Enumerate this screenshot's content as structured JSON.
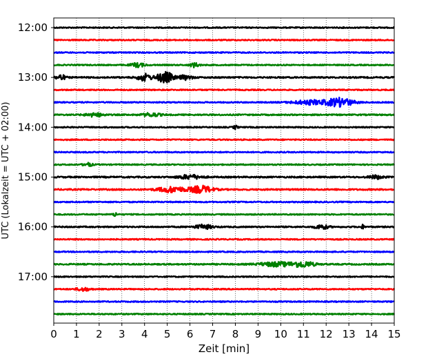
{
  "chart_data": {
    "type": "line",
    "title": "",
    "xlabel": "Zeit  [min]",
    "ylabel": "UTC (Lokalzeit = UTC + 02:00)",
    "xlim": [
      0,
      15
    ],
    "x_ticks": [
      0,
      1,
      2,
      3,
      4,
      5,
      6,
      7,
      8,
      9,
      10,
      11,
      12,
      13,
      14,
      15
    ],
    "x_tick_labels": [
      "0",
      "1",
      "2",
      "3",
      "4",
      "5",
      "6",
      "7",
      "8",
      "9",
      "10",
      "11",
      "12",
      "13",
      "14",
      "15"
    ],
    "grid": "vertical dotted",
    "trace_colors": [
      "#000000",
      "#ff0000",
      "#0000ff",
      "#008000"
    ],
    "y_tick_labels": [
      "12:00",
      "13:00",
      "14:00",
      "15:00",
      "16:00",
      "17:00"
    ],
    "traces": [
      {
        "start": "12:00",
        "color": "#000000",
        "noise": 0.8,
        "bursts": []
      },
      {
        "start": "12:15",
        "color": "#ff0000",
        "noise": 0.8,
        "bursts": []
      },
      {
        "start": "12:30",
        "color": "#0000ff",
        "noise": 0.8,
        "bursts": []
      },
      {
        "start": "12:45",
        "color": "#008000",
        "noise": 0.8,
        "bursts": [
          {
            "t": 3.7,
            "amp": 3,
            "width": 0.3
          },
          {
            "t": 6.2,
            "amp": 3,
            "width": 0.2
          }
        ]
      },
      {
        "start": "13:00",
        "color": "#000000",
        "noise": 1.0,
        "bursts": [
          {
            "t": 0.3,
            "amp": 4,
            "width": 0.2
          },
          {
            "t": 4.0,
            "amp": 5,
            "width": 0.3
          },
          {
            "t": 4.9,
            "amp": 8,
            "width": 0.35
          },
          {
            "t": 5.8,
            "amp": 3,
            "width": 0.3
          }
        ]
      },
      {
        "start": "13:15",
        "color": "#ff0000",
        "noise": 0.8,
        "bursts": []
      },
      {
        "start": "13:30",
        "color": "#0000ff",
        "noise": 0.8,
        "bursts": [
          {
            "t": 11.3,
            "amp": 3,
            "width": 0.8
          },
          {
            "t": 12.6,
            "amp": 6,
            "width": 0.6
          }
        ]
      },
      {
        "start": "13:45",
        "color": "#008000",
        "noise": 0.9,
        "bursts": [
          {
            "t": 1.8,
            "amp": 2.5,
            "width": 0.4
          },
          {
            "t": 4.3,
            "amp": 2.5,
            "width": 0.4
          }
        ]
      },
      {
        "start": "14:00",
        "color": "#000000",
        "noise": 0.8,
        "bursts": [
          {
            "t": 8.0,
            "amp": 2.5,
            "width": 0.1
          }
        ]
      },
      {
        "start": "14:15",
        "color": "#ff0000",
        "noise": 0.8,
        "bursts": []
      },
      {
        "start": "14:30",
        "color": "#0000ff",
        "noise": 0.8,
        "bursts": []
      },
      {
        "start": "14:45",
        "color": "#008000",
        "noise": 0.8,
        "bursts": [
          {
            "t": 1.5,
            "amp": 2.5,
            "width": 0.2
          }
        ]
      },
      {
        "start": "15:00",
        "color": "#000000",
        "noise": 1.0,
        "bursts": [
          {
            "t": 6.0,
            "amp": 3,
            "width": 0.5
          },
          {
            "t": 14.2,
            "amp": 2.5,
            "width": 0.3
          }
        ]
      },
      {
        "start": "15:15",
        "color": "#ff0000",
        "noise": 1.0,
        "bursts": [
          {
            "t": 5.2,
            "amp": 4,
            "width": 0.6
          },
          {
            "t": 6.5,
            "amp": 5,
            "width": 0.5
          }
        ]
      },
      {
        "start": "15:30",
        "color": "#0000ff",
        "noise": 0.8,
        "bursts": []
      },
      {
        "start": "15:45",
        "color": "#008000",
        "noise": 0.8,
        "bursts": [
          {
            "t": 2.7,
            "amp": 3,
            "width": 0.08
          }
        ]
      },
      {
        "start": "16:00",
        "color": "#000000",
        "noise": 0.9,
        "bursts": [
          {
            "t": 6.6,
            "amp": 3,
            "width": 0.4
          },
          {
            "t": 11.8,
            "amp": 3,
            "width": 0.3
          },
          {
            "t": 13.6,
            "amp": 3,
            "width": 0.06
          }
        ]
      },
      {
        "start": "16:15",
        "color": "#ff0000",
        "noise": 0.8,
        "bursts": []
      },
      {
        "start": "16:30",
        "color": "#0000ff",
        "noise": 0.8,
        "bursts": []
      },
      {
        "start": "16:45",
        "color": "#008000",
        "noise": 0.9,
        "bursts": [
          {
            "t": 9.8,
            "amp": 3,
            "width": 0.8
          },
          {
            "t": 11.0,
            "amp": 4,
            "width": 0.5
          }
        ]
      },
      {
        "start": "17:00",
        "color": "#000000",
        "noise": 0.8,
        "bursts": []
      },
      {
        "start": "17:15",
        "color": "#ff0000",
        "noise": 0.8,
        "bursts": [
          {
            "t": 1.3,
            "amp": 2.5,
            "width": 0.3
          }
        ]
      },
      {
        "start": "17:30",
        "color": "#0000ff",
        "noise": 0.8,
        "bursts": []
      },
      {
        "start": "17:45",
        "color": "#008000",
        "noise": 0.8,
        "bursts": []
      }
    ]
  }
}
